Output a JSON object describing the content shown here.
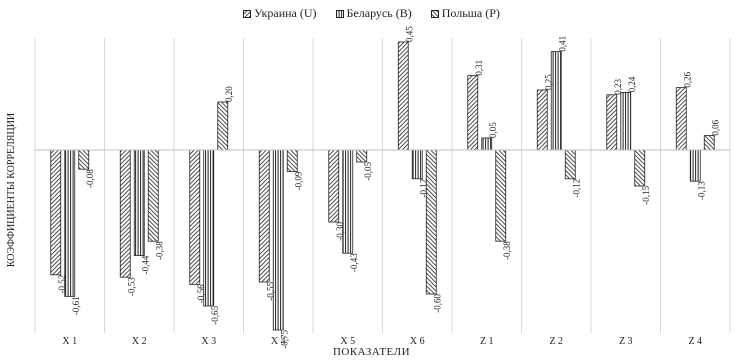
{
  "chart_data": {
    "type": "bar",
    "title": "",
    "xlabel": "ПОКАЗАТЕЛИ",
    "ylabel": "КОЭФФИЦИЕНТЫ КОРРЕЛЯЦИИ",
    "ylim": [
      -1,
      0.8
    ],
    "grid": "vertical separators only",
    "legend_position": "top",
    "categories": [
      "X 1",
      "X 2",
      "X 3",
      "X 4",
      "X 5",
      "X 6",
      "Z 1",
      "Z 2",
      "Z 3",
      "Z 4"
    ],
    "series": [
      {
        "name": "Украина (U)",
        "pattern": "diagonal-forward",
        "values": [
          -0.52,
          -0.53,
          -0.56,
          -0.55,
          -0.3,
          0.45,
          0.31,
          0.25,
          0.23,
          0.26
        ],
        "labels": [
          "-0,52",
          "-0,53",
          "-0,56",
          "-0,55",
          "-0,30",
          "0,45",
          "0,31",
          "0,25",
          "0,23",
          "0,26"
        ]
      },
      {
        "name": "Беларусь (B)",
        "pattern": "vertical",
        "values": [
          -0.61,
          -0.44,
          -0.65,
          -0.75,
          -0.43,
          -0.12,
          0.05,
          0.41,
          0.24,
          -0.13
        ],
        "labels": [
          "-0,61",
          "-0,44",
          "-0,65",
          "-0,75",
          "-0,43",
          "-0,12",
          "0,05",
          "0,41",
          "0,24",
          "-0,13"
        ]
      },
      {
        "name": "Польша (P)",
        "pattern": "diagonal-back",
        "values": [
          -0.08,
          -0.38,
          0.2,
          -0.09,
          -0.05,
          -0.6,
          -0.38,
          -0.12,
          -0.15,
          0.06
        ],
        "labels": [
          "-0,08",
          "-0,38",
          "0,20",
          "-0,09",
          "-0,05",
          "-0,60",
          "-0,38",
          "-0,12",
          "-0,15",
          "0,06"
        ]
      }
    ]
  },
  "colors": {
    "bar_stroke": "#222222",
    "axis": "#bfbfbf",
    "separator": "#d9d9d9"
  }
}
